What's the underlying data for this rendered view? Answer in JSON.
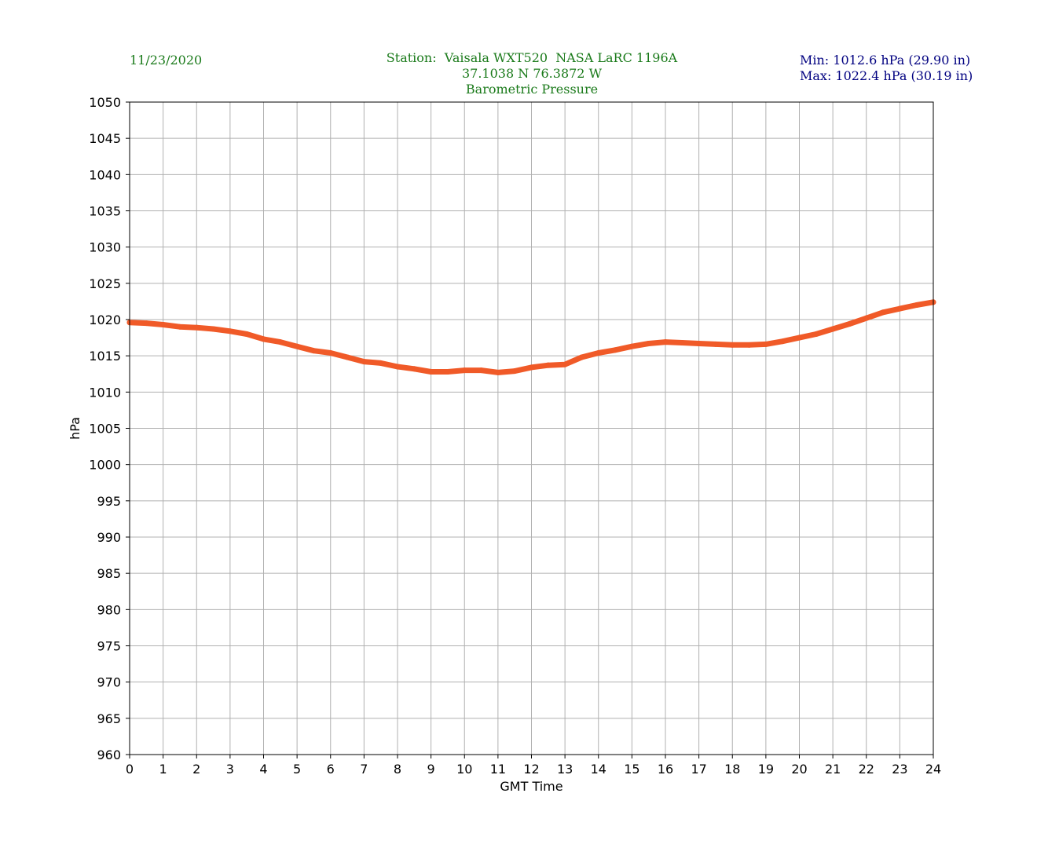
{
  "header": {
    "date": "11/23/2020",
    "station_line": "Station:  Vaisala WXT520  NASA LaRC 1196A",
    "coords_line": "37.1038 N 76.3872 W",
    "title_line": "Barometric Pressure",
    "min_text": "Min: 1012.6 hPa (29.90 in)",
    "max_text": "Max: 1022.4 hPa (30.19 in)",
    "title_color": "#1a7a1a",
    "minmax_color": "#000080"
  },
  "chart_data": {
    "type": "line",
    "xlabel": "GMT Time",
    "ylabel": "hPa",
    "xlim": [
      0,
      24
    ],
    "ylim": [
      960,
      1050
    ],
    "x_ticks": [
      0,
      1,
      2,
      3,
      4,
      5,
      6,
      7,
      8,
      9,
      10,
      11,
      12,
      13,
      14,
      15,
      16,
      17,
      18,
      19,
      20,
      21,
      22,
      23,
      24
    ],
    "y_ticks": [
      960,
      965,
      970,
      975,
      980,
      985,
      990,
      995,
      1000,
      1005,
      1010,
      1015,
      1020,
      1025,
      1030,
      1035,
      1040,
      1045,
      1050
    ],
    "grid": true,
    "series_color": "#f05a28",
    "series": [
      {
        "x": [
          0,
          0.5,
          1,
          1.5,
          2,
          2.5,
          3,
          3.5,
          4,
          4.5,
          5,
          5.5,
          6,
          6.5,
          7,
          7.5,
          8,
          8.5,
          9,
          9.5,
          10,
          10.5,
          11,
          11.5,
          12,
          12.5,
          13,
          13.5,
          14,
          14.5,
          15,
          15.5,
          16,
          16.5,
          17,
          17.5,
          18,
          18.5,
          19,
          19.5,
          20,
          20.5,
          21,
          21.5,
          22,
          22.5,
          23,
          23.5,
          24
        ],
        "y": [
          1019.6,
          1019.5,
          1019.3,
          1019.0,
          1018.9,
          1018.7,
          1018.4,
          1018.0,
          1017.3,
          1016.9,
          1016.3,
          1015.7,
          1015.4,
          1014.8,
          1014.2,
          1014.0,
          1013.5,
          1013.2,
          1012.8,
          1012.8,
          1013.0,
          1013.0,
          1012.7,
          1012.9,
          1013.4,
          1013.7,
          1013.8,
          1014.8,
          1015.4,
          1015.8,
          1016.3,
          1016.7,
          1016.9,
          1016.8,
          1016.7,
          1016.6,
          1016.5,
          1016.5,
          1016.6,
          1017.0,
          1017.5,
          1018.0,
          1018.7,
          1019.4,
          1020.2,
          1021.0,
          1021.5,
          1022.0,
          1022.4
        ]
      }
    ]
  }
}
